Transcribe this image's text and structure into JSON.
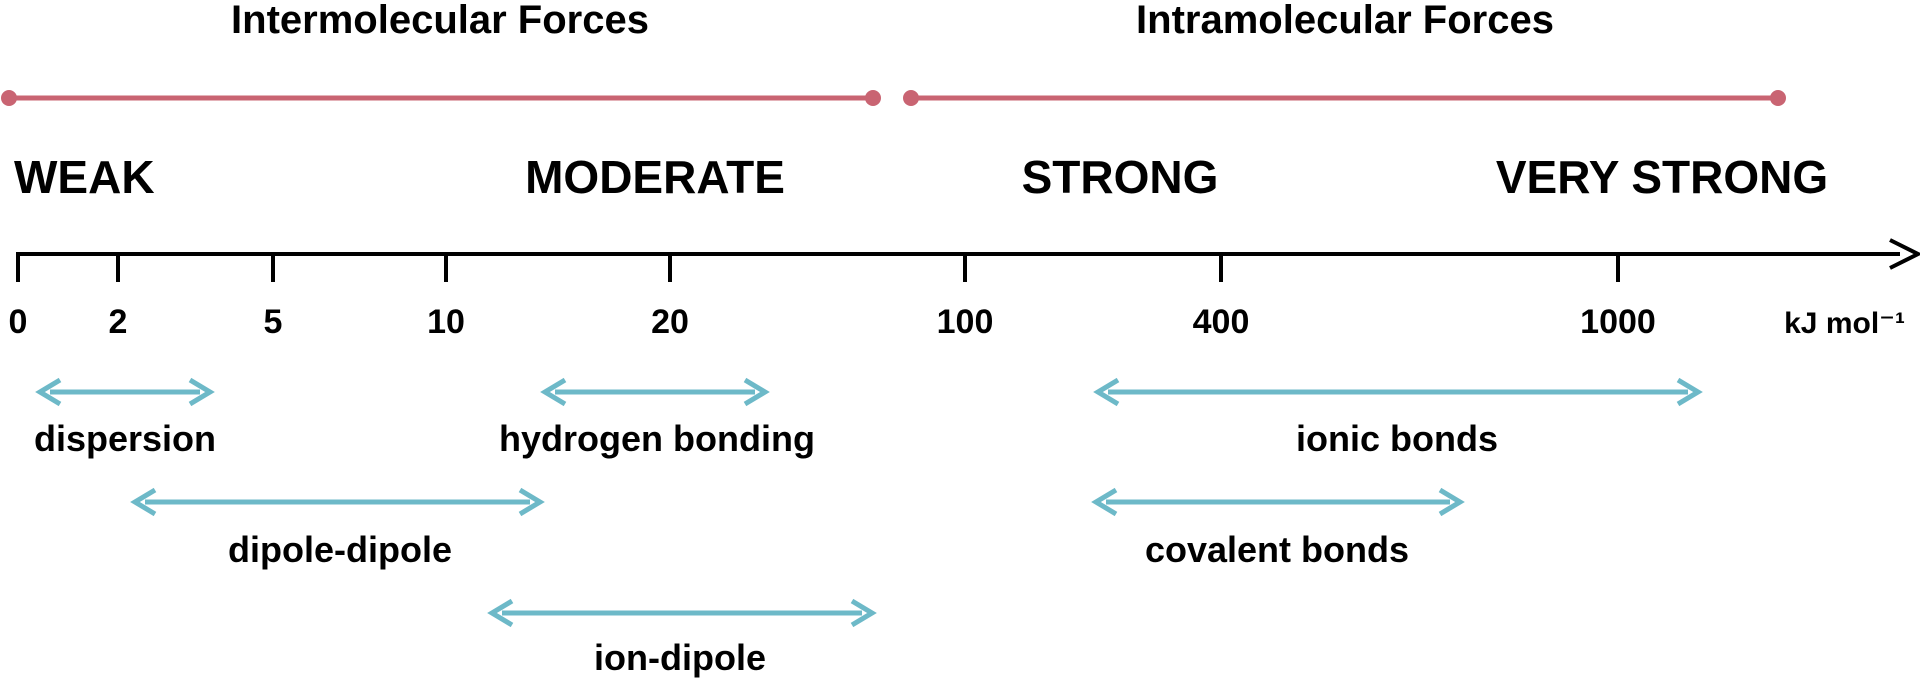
{
  "colors": {
    "category_bar": "#c96472",
    "range_arrow": "#6db9c8",
    "axis": "#000000",
    "text": "#000000"
  },
  "headers": {
    "intermolecular": "Intermolecular Forces",
    "intramolecular": "Intramolecular Forces"
  },
  "strength_labels": {
    "weak": "WEAK",
    "moderate": "MODERATE",
    "strong": "STRONG",
    "very_strong": "VERY STRONG"
  },
  "axis": {
    "ticks": [
      "0",
      "2",
      "5",
      "10",
      "20",
      "100",
      "400",
      "1000"
    ],
    "unit": "kJ mol⁻¹"
  },
  "ranges": {
    "dispersion": "dispersion",
    "hydrogen_bonding": "hydrogen bonding",
    "dipole_dipole": "dipole-dipole",
    "ion_dipole": "ion-dipole",
    "ionic_bonds": "ionic bonds",
    "covalent_bonds": "covalent bonds"
  }
}
